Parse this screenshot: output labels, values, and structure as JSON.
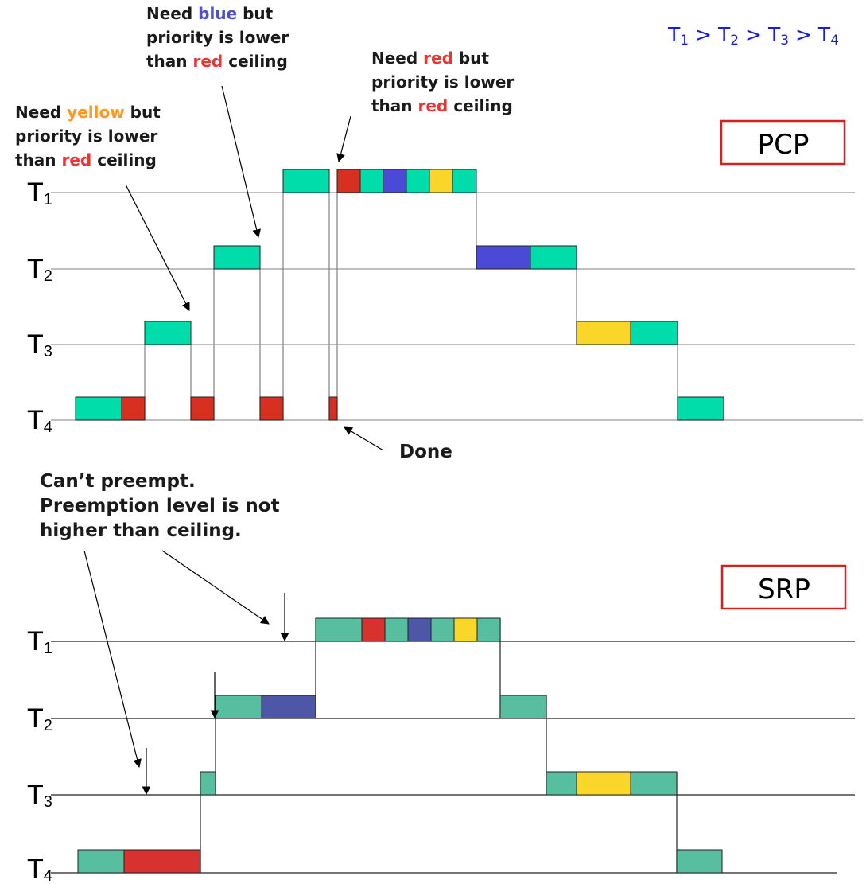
{
  "priority_order": [
    {
      "name": "T",
      "sub": "1"
    },
    {
      "name": "T",
      "sub": "2"
    },
    {
      "name": "T",
      "sub": "3"
    },
    {
      "name": "T",
      "sub": "4"
    }
  ],
  "priority_separator": ">",
  "colors": {
    "green": "#00dcaa",
    "red": "#d83020",
    "blue": "#4a4ad6",
    "yellow": "#fad52a",
    "srp_green": "#57bfa0",
    "srp_blue": "#4e56a8",
    "srp_red": "#d73230",
    "word_blue": "#5050cc",
    "word_red": "#ee3333",
    "word_yellow": "#ff9922",
    "badge_border": "#d42020",
    "order_text": "#1a1ae6"
  },
  "pcp": {
    "title": "PCP",
    "rows": [
      {
        "name": "T",
        "sub": "1"
      },
      {
        "name": "T",
        "sub": "2"
      },
      {
        "name": "T",
        "sub": "3"
      },
      {
        "name": "T",
        "sub": "4"
      }
    ],
    "notes": {
      "yellow_note": {
        "line1": {
          "before": "Need ",
          "word": "yellow",
          "after": " but"
        },
        "line2": "priority is lower",
        "line3": {
          "before": "than ",
          "word": "red",
          "after": " ceiling"
        }
      },
      "blue_note": {
        "line1": {
          "before": "Need ",
          "word": "blue",
          "after": " but"
        },
        "line2": "priority is lower",
        "line3": {
          "before": "than ",
          "word": "red",
          "after": " ceiling"
        }
      },
      "red_note": {
        "line1": {
          "before": "Need ",
          "word": "red",
          "after": " but"
        },
        "line2": "priority is lower",
        "line3": {
          "before": "than ",
          "word": "red",
          "after": " ceiling"
        }
      },
      "done_label": "Done"
    }
  },
  "srp": {
    "title": "SRP",
    "rows": [
      {
        "name": "T",
        "sub": "1"
      },
      {
        "name": "T",
        "sub": "2"
      },
      {
        "name": "T",
        "sub": "3"
      },
      {
        "name": "T",
        "sub": "4"
      }
    ],
    "note": {
      "line1": "Can’t preempt.",
      "line2": "Preemption level is not",
      "line3": "higher than ceiling."
    }
  }
}
